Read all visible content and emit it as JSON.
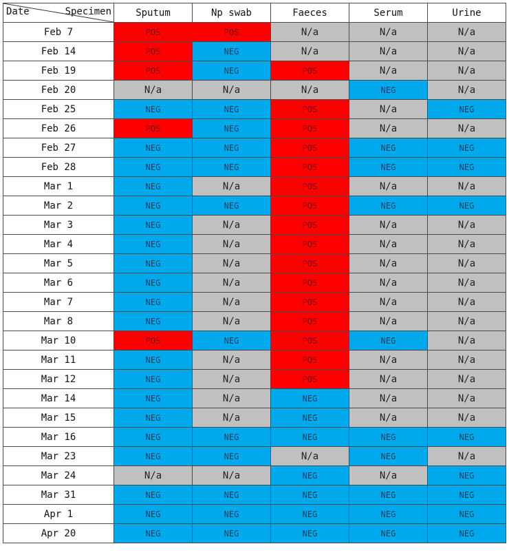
{
  "header": {
    "date_label": "Date",
    "specimen_label": "Specimen",
    "columns": [
      "Sputum",
      "Np swab",
      "Faeces",
      "Serum",
      "Urine"
    ]
  },
  "status_colors": {
    "POS": "#ff0000",
    "NEG": "#00a9eb",
    "N/a": "#c0c0c0"
  },
  "rows": [
    {
      "date": "Feb 7",
      "values": [
        "POS",
        "POS",
        "N/a",
        "N/a",
        "N/a"
      ]
    },
    {
      "date": "Feb 14",
      "values": [
        "POS",
        "NEG",
        "N/a",
        "N/a",
        "N/a"
      ]
    },
    {
      "date": "Feb 19",
      "values": [
        "POS",
        "NEG",
        "POS",
        "N/a",
        "N/a"
      ]
    },
    {
      "date": "Feb 20",
      "values": [
        "N/a",
        "N/a",
        "N/a",
        "NEG",
        "N/a"
      ]
    },
    {
      "date": "Feb 25",
      "values": [
        "NEG",
        "NEG",
        "POS",
        "N/a",
        "NEG"
      ]
    },
    {
      "date": "Feb 26",
      "values": [
        "POS",
        "NEG",
        "POS",
        "N/a",
        "N/a"
      ]
    },
    {
      "date": "Feb 27",
      "values": [
        "NEG",
        "NEG",
        "POS",
        "NEG",
        "NEG"
      ]
    },
    {
      "date": "Feb 28",
      "values": [
        "NEG",
        "NEG",
        "POS",
        "NEG",
        "NEG"
      ]
    },
    {
      "date": "Mar 1",
      "values": [
        "NEG",
        "N/a",
        "POS",
        "N/a",
        "N/a"
      ]
    },
    {
      "date": "Mar 2",
      "values": [
        "NEG",
        "NEG",
        "POS",
        "NEG",
        "NEG"
      ]
    },
    {
      "date": "Mar 3",
      "values": [
        "NEG",
        "N/a",
        "POS",
        "N/a",
        "N/a"
      ]
    },
    {
      "date": "Mar 4",
      "values": [
        "NEG",
        "N/a",
        "POS",
        "N/a",
        "N/a"
      ]
    },
    {
      "date": "Mar 5",
      "values": [
        "NEG",
        "N/a",
        "POS",
        "N/a",
        "N/a"
      ]
    },
    {
      "date": "Mar 6",
      "values": [
        "NEG",
        "N/a",
        "POS",
        "N/a",
        "N/a"
      ]
    },
    {
      "date": "Mar 7",
      "values": [
        "NEG",
        "N/a",
        "POS",
        "N/a",
        "N/a"
      ]
    },
    {
      "date": "Mar 8",
      "values": [
        "NEG",
        "N/a",
        "POS",
        "N/a",
        "N/a"
      ]
    },
    {
      "date": "Mar 10",
      "values": [
        "POS",
        "NEG",
        "POS",
        "NEG",
        "N/a"
      ]
    },
    {
      "date": "Mar 11",
      "values": [
        "NEG",
        "N/a",
        "POS",
        "N/a",
        "N/a"
      ]
    },
    {
      "date": "Mar 12",
      "values": [
        "NEG",
        "N/a",
        "POS",
        "N/a",
        "N/a"
      ]
    },
    {
      "date": "Mar 14",
      "values": [
        "NEG",
        "N/a",
        "NEG",
        "N/a",
        "N/a"
      ]
    },
    {
      "date": "Mar 15",
      "values": [
        "NEG",
        "N/a",
        "NEG",
        "N/a",
        "N/a"
      ]
    },
    {
      "date": "Mar 16",
      "values": [
        "NEG",
        "NEG",
        "NEG",
        "NEG",
        "NEG"
      ]
    },
    {
      "date": "Mar 23",
      "values": [
        "NEG",
        "NEG",
        "N/a",
        "NEG",
        "N/a"
      ]
    },
    {
      "date": "Mar 24",
      "values": [
        "N/a",
        "N/a",
        "NEG",
        "N/a",
        "NEG"
      ]
    },
    {
      "date": "Mar 31",
      "values": [
        "NEG",
        "NEG",
        "NEG",
        "NEG",
        "NEG"
      ]
    },
    {
      "date": "Apr 1",
      "values": [
        "NEG",
        "NEG",
        "NEG",
        "NEG",
        "NEG"
      ]
    },
    {
      "date": "Apr 20",
      "values": [
        "NEG",
        "NEG",
        "NEG",
        "NEG",
        "NEG"
      ]
    }
  ]
}
